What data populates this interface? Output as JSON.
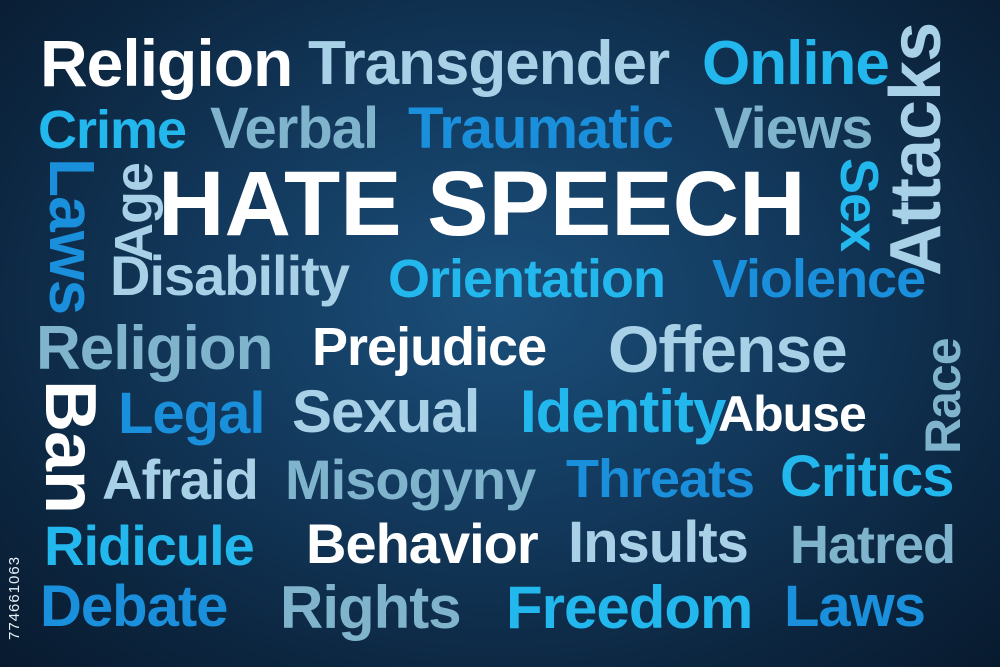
{
  "words": {
    "religion_top": "Religion",
    "transgender": "Transgender",
    "online": "Online",
    "crime": "Crime",
    "verbal": "Verbal",
    "traumatic": "Traumatic",
    "views": "Views",
    "laws_vertical": "Laws",
    "age": "Age",
    "hate_speech": "HATE SPEECH",
    "sex": "Sex",
    "attacks": "Attacks",
    "disability": "Disability",
    "orientation": "Orientation",
    "violence": "Violence",
    "religion_mid": "Religion",
    "prejudice": "Prejudice",
    "offense": "Offense",
    "race": "Race",
    "ban": "Ban",
    "legal": "Legal",
    "sexual": "Sexual",
    "identity": "Identity",
    "abuse": "Abuse",
    "afraid": "Afraid",
    "misogyny": "Misogyny",
    "threats": "Threats",
    "critics": "Critics",
    "ridicule": "Ridicule",
    "behavior": "Behavior",
    "insults": "Insults",
    "hatred": "Hatred",
    "debate": "Debate",
    "rights": "Rights",
    "freedom": "Freedom",
    "laws_bottom": "Laws"
  },
  "watermark": "774661063",
  "colors": {
    "white": "#ffffff",
    "cyan": "#22b8ee",
    "blue": "#1a8fdb",
    "pale": "#a8d0e6",
    "teal": "#7fb4cc",
    "background": "#133a5e"
  }
}
